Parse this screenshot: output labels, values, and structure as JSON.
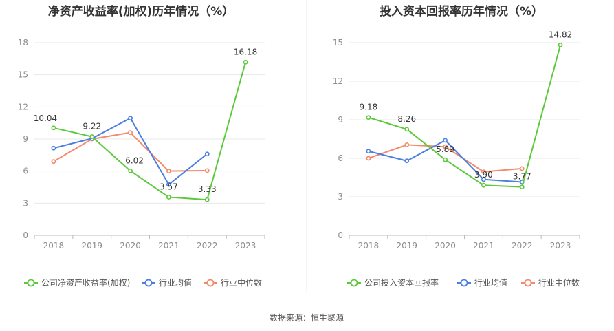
{
  "source_text": "数据来源：恒生聚源",
  "chart_data": [
    {
      "type": "line",
      "title": "净资产收益率(加权)历年情况（%）",
      "categories": [
        "2018",
        "2019",
        "2020",
        "2021",
        "2022",
        "2023"
      ],
      "ylim": [
        0,
        18
      ],
      "yticks": [
        0,
        3,
        6,
        9,
        12,
        15,
        18
      ],
      "grid": true,
      "legend_position": "bottom",
      "series": [
        {
          "name": "公司净资产收益率(加权)",
          "color": "#5cc93a",
          "values": [
            10.04,
            9.22,
            6.02,
            3.57,
            3.33,
            16.18
          ],
          "labels": [
            "10.04",
            "9.22",
            "6.02",
            "3.57",
            "3.33",
            "16.18"
          ]
        },
        {
          "name": "行业均值",
          "color": "#4a7fe0",
          "values": [
            8.15,
            9.05,
            10.95,
            4.75,
            7.6,
            null
          ],
          "labels": []
        },
        {
          "name": "行业中位数",
          "color": "#f28a6b",
          "values": [
            6.9,
            9.0,
            9.6,
            6.0,
            6.05,
            null
          ],
          "labels": []
        }
      ]
    },
    {
      "type": "line",
      "title": "投入资本回报率历年情况（%）",
      "categories": [
        "2018",
        "2019",
        "2020",
        "2021",
        "2022",
        "2023"
      ],
      "ylim": [
        0,
        15
      ],
      "yticks": [
        0,
        3,
        6,
        9,
        12,
        15
      ],
      "grid": true,
      "legend_position": "bottom",
      "series": [
        {
          "name": "公司投入资本回报率",
          "color": "#5cc93a",
          "values": [
            9.18,
            8.26,
            5.89,
            3.9,
            3.77,
            14.82
          ],
          "labels": [
            "9.18",
            "8.26",
            "5.89",
            "3.90",
            "3.77",
            "14.82"
          ]
        },
        {
          "name": "行业均值",
          "color": "#4a7fe0",
          "values": [
            6.55,
            5.8,
            7.4,
            4.35,
            4.15,
            null
          ],
          "labels": []
        },
        {
          "name": "行业中位数",
          "color": "#f28a6b",
          "values": [
            6.0,
            7.05,
            6.9,
            4.95,
            5.2,
            null
          ],
          "labels": []
        }
      ]
    }
  ]
}
